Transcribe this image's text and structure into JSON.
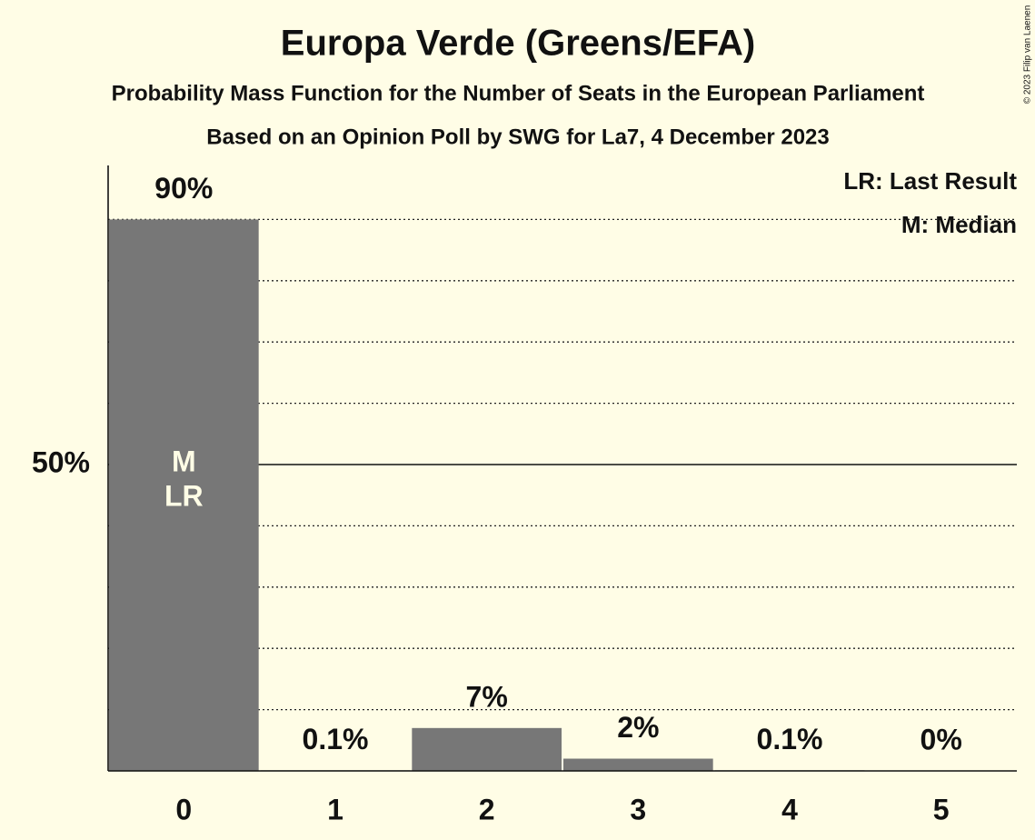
{
  "chart_data": {
    "type": "bar",
    "title": "Europa Verde (Greens/EFA)",
    "subtitle": "Probability Mass Function for the Number of Seats in the European Parliament",
    "source": "Based on an Opinion Poll by SWG for La7, 4 December 2023",
    "credit": "© 2023 Filip van Laenen",
    "categories": [
      "0",
      "1",
      "2",
      "3",
      "4",
      "5"
    ],
    "values": [
      90,
      0.1,
      7,
      2,
      0.1,
      0
    ],
    "value_labels": [
      "90%",
      "0.1%",
      "7%",
      "2%",
      "0.1%",
      "0%"
    ],
    "color": "#777777",
    "ylim": [
      0,
      100
    ],
    "yticks": [
      {
        "value": 50,
        "label": "50%"
      }
    ],
    "minor_grid": [
      10,
      20,
      30,
      40,
      60,
      70,
      80,
      90
    ],
    "grid": true,
    "annotations": [
      {
        "text": "M",
        "category": "0"
      },
      {
        "text": "LR",
        "category": "0"
      }
    ],
    "legend": [
      "LR: Last Result",
      "M: Median"
    ],
    "legend_position": "top-right"
  }
}
